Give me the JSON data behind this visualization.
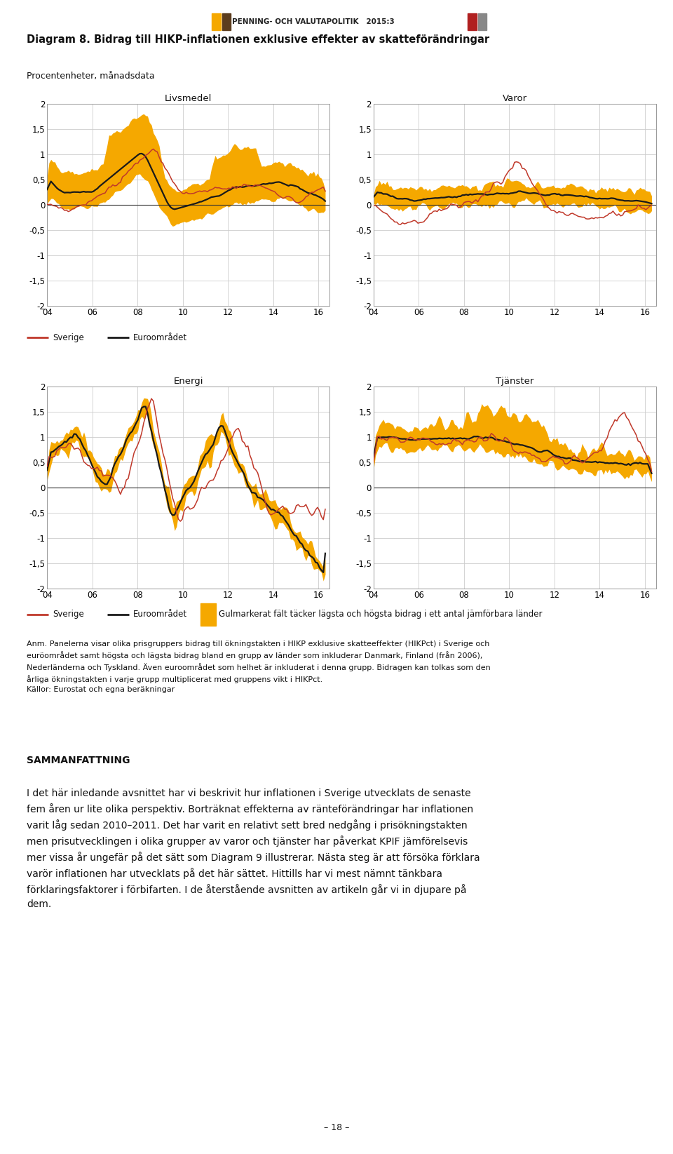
{
  "title": "Diagram 8. Bidrag till HIKP-inflationen exklusive effekter av skatteförändringar",
  "subtitle": "Procentenheter, månadsdata",
  "header_text": "PENNING- OCH VALUTAPOLITIK   2015:3",
  "subplot_titles": [
    "Livsmedel",
    "Varor",
    "Energi",
    "Tjänster"
  ],
  "xlabel_ticks": [
    "04",
    "06",
    "08",
    "10",
    "12",
    "14",
    "16"
  ],
  "ylim": [
    -2,
    2
  ],
  "ytick_labels": [
    "-2",
    "-1,5",
    "-1",
    "-0,5",
    "0",
    "0,5",
    "1",
    "1,5",
    "2"
  ],
  "legend_sverige": "Sverige",
  "legend_euro": "Euroområdet",
  "legend_band": "Gulmarkerat fält täcker lägsta och högsta bidrag i ett antal jämförbara länder",
  "color_sverige": "#c0392b",
  "color_euro": "#1a1a1a",
  "color_band": "#f5a800",
  "background_color": "#ffffff",
  "note_text": "Anm. Panelerna visar olika prisgruppers bidrag till ökningstakten i HIKP exklusive skatteeffekter (HIKPct) i Sverige och\neuröområdet samt högsta och lägsta bidrag bland en grupp av länder som inkluderar Danmark, Finland (från 2006),\nNederländerna och Tyskland. Även euroområdet som helhet är inkluderat i denna grupp. Bidragen kan tolkas som den\nårliga ökningstakten i varje grupp multiplicerat med gruppens vikt i HIKPct.\nKällor: Eurostat och egna beräkningar",
  "sammanfattning_title": "SAMMANFATTNING",
  "sammanfattning_text1": "I det här inledande avsnittet har vi beskrivit hur inflationen i Sverige utvecklats de senaste\nfem åren ur lite olika perspektiv. Borträknat effekterna av ränteförändringar har inflationen\nvarit låg sedan 2010–2011. Det har varit en relativt sett bred nedgång i prisökningstakten\nmen prisutvecklingen i olika grupper av varor och tjänster har påverkat KPIF jämförelsevis\nmer vissa år ungefär på det sätt som Diagram 9 illustrerar. Nästa steg är att försöka förklara\nvarör inflationen har utvecklats på det här sättet. Hittills har vi mest nämnt tänkbara\nförklaringsfaktorer i förbifarten. I de återstående avsnitten av artikeln går vi in djupare på\ndem.",
  "page_number": "– 18 –",
  "font_size_title": 10.5,
  "font_size_subtitle": 9,
  "font_size_subplot_title": 9.5,
  "font_size_tick": 8.5,
  "font_size_legend": 8.5,
  "font_size_note": 8,
  "font_size_samman_title": 10,
  "font_size_samman_text": 10,
  "font_size_page": 9,
  "font_size_header": 7.5
}
